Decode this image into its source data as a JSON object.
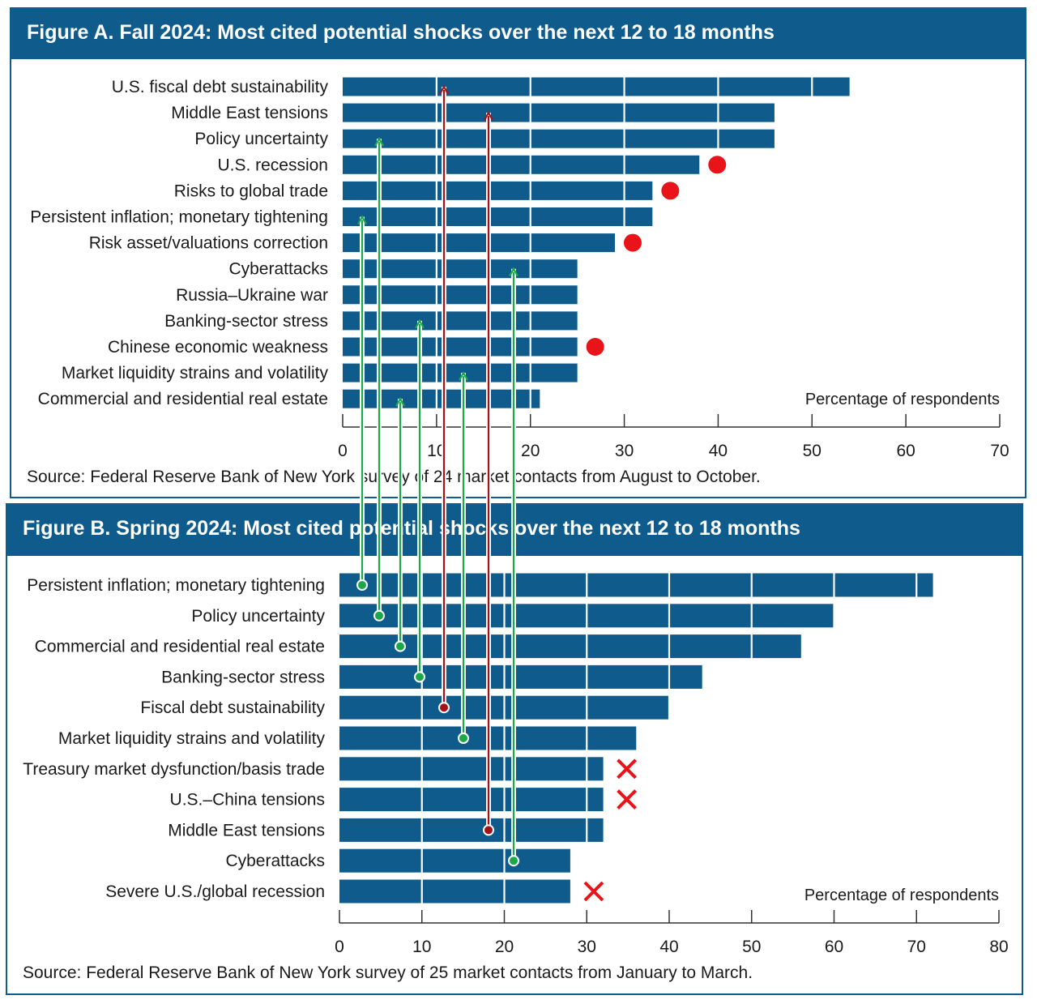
{
  "colors": {
    "bar": "#0e5b8c",
    "header": "#0e5b8c",
    "border": "#0e5b8c",
    "up_arrow": "#1aa84a",
    "down_arrow": "#a3131a",
    "new_marker": "#e8141a",
    "dropped_marker": "#e8141a"
  },
  "chart_data": [
    {
      "type": "bar",
      "orientation": "horizontal",
      "title": "Figure A. Fall 2024: Most cited potential shocks over the next 12 to 18 months",
      "xlabel": "Percentage of respondents",
      "xlim": [
        0,
        70
      ],
      "xticks": [
        0,
        10,
        20,
        30,
        40,
        50,
        60,
        70
      ],
      "categories": [
        "U.S. fiscal debt sustainability",
        "Middle East tensions",
        "Policy uncertainty",
        "U.S. recession",
        "Risks to global trade",
        "Persistent inflation; monetary tightening",
        "Risk asset/valuations correction",
        "Cyberattacks",
        "Russia–Ukraine war",
        "Banking-sector stress",
        "Chinese economic weakness",
        "Market liquidity strains and volatility",
        "Commercial and residential real estate"
      ],
      "values": [
        54,
        46,
        46,
        38,
        33,
        33,
        29,
        25,
        25,
        25,
        25,
        25,
        21
      ],
      "new_entries": [
        "U.S. recession",
        "Risks to global trade",
        "Risk asset/valuations correction",
        "Chinese economic weakness"
      ],
      "source": "Source: Federal Reserve Bank of New York survey of 24 market contacts from August to October."
    },
    {
      "type": "bar",
      "orientation": "horizontal",
      "title": "Figure B. Spring 2024: Most cited potential shocks over the next 12 to 18 months",
      "xlabel": "Percentage of respondents",
      "xlim": [
        0,
        80
      ],
      "xticks": [
        0,
        10,
        20,
        30,
        40,
        50,
        60,
        70,
        80
      ],
      "categories": [
        "Persistent inflation; monetary tightening",
        "Policy uncertainty",
        "Commercial and residential real estate",
        "Banking-sector stress",
        "Fiscal debt sustainability",
        "Market liquidity strains and volatility",
        "Treasury market dysfunction/basis trade",
        "U.S.–China tensions",
        "Middle East tensions",
        "Cyberattacks",
        "Severe U.S./global recession"
      ],
      "values": [
        72,
        60,
        56,
        44,
        40,
        36,
        32,
        32,
        32,
        28,
        28
      ],
      "dropped_entries": [
        "Treasury market dysfunction/basis trade",
        "U.S.–China tensions",
        "Severe U.S./global recession"
      ],
      "source": "Source: Federal Reserve Bank of New York survey of 25 market contacts from January to March."
    }
  ],
  "rank_changes": [
    {
      "from": "Persistent inflation; monetary tightening",
      "to": "Persistent inflation; monetary tightening",
      "direction": "down"
    },
    {
      "from": "Policy uncertainty",
      "to": "Policy uncertainty",
      "direction": "down"
    },
    {
      "from": "Commercial and residential real estate",
      "to": "Commercial and residential real estate",
      "direction": "down"
    },
    {
      "from": "Banking-sector stress",
      "to": "Banking-sector stress",
      "direction": "down"
    },
    {
      "from": "Fiscal debt sustainability",
      "to": "U.S. fiscal debt sustainability",
      "direction": "up"
    },
    {
      "from": "Market liquidity strains and volatility",
      "to": "Market liquidity strains and volatility",
      "direction": "down"
    },
    {
      "from": "Middle East tensions",
      "to": "Middle East tensions",
      "direction": "up"
    },
    {
      "from": "Cyberattacks",
      "to": "Cyberattacks",
      "direction": "down"
    }
  ]
}
